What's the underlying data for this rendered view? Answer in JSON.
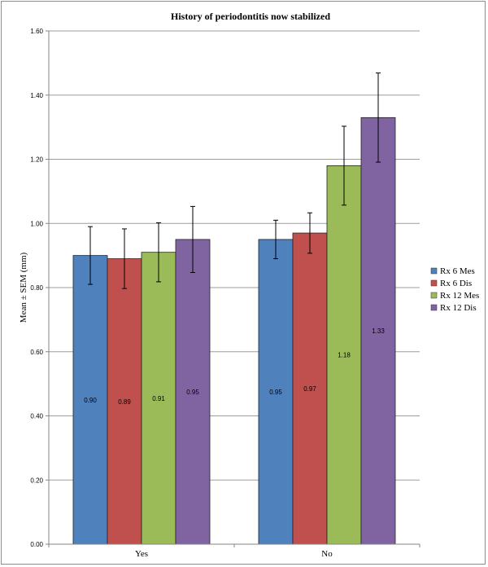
{
  "chart_data": {
    "type": "bar",
    "title": "History of periodontitis now stabilized",
    "xlabel": "",
    "ylabel": "Mean ± SEM (mm)",
    "ylim": [
      0,
      1.6
    ],
    "yticks": [
      "0.00",
      "0.20",
      "0.40",
      "0.60",
      "0.80",
      "1.00",
      "1.20",
      "1.40",
      "1.60"
    ],
    "grid": true,
    "legend_position": "right",
    "categories": [
      "Yes",
      "No"
    ],
    "series": [
      {
        "name": "Rx 6 Mes",
        "color": "#4f81bd",
        "values": [
          0.9,
          0.95
        ],
        "labels": [
          "0.90",
          "0.95"
        ],
        "sem": [
          0.09,
          0.06
        ]
      },
      {
        "name": "Rx 6 Dis",
        "color": "#c0504d",
        "values": [
          0.89,
          0.97
        ],
        "labels": [
          "0.89",
          "0.97"
        ],
        "sem": [
          0.093,
          0.063
        ]
      },
      {
        "name": "Rx 12 Mes",
        "color": "#9bbb59",
        "values": [
          0.91,
          1.18
        ],
        "labels": [
          "0.91",
          "1.18"
        ],
        "sem": [
          0.092,
          0.123
        ]
      },
      {
        "name": "Rx 12 Dis",
        "color": "#8064a2",
        "values": [
          0.95,
          1.33
        ],
        "labels": [
          "0.95",
          "1.33"
        ],
        "sem": [
          0.103,
          0.139
        ]
      }
    ]
  }
}
